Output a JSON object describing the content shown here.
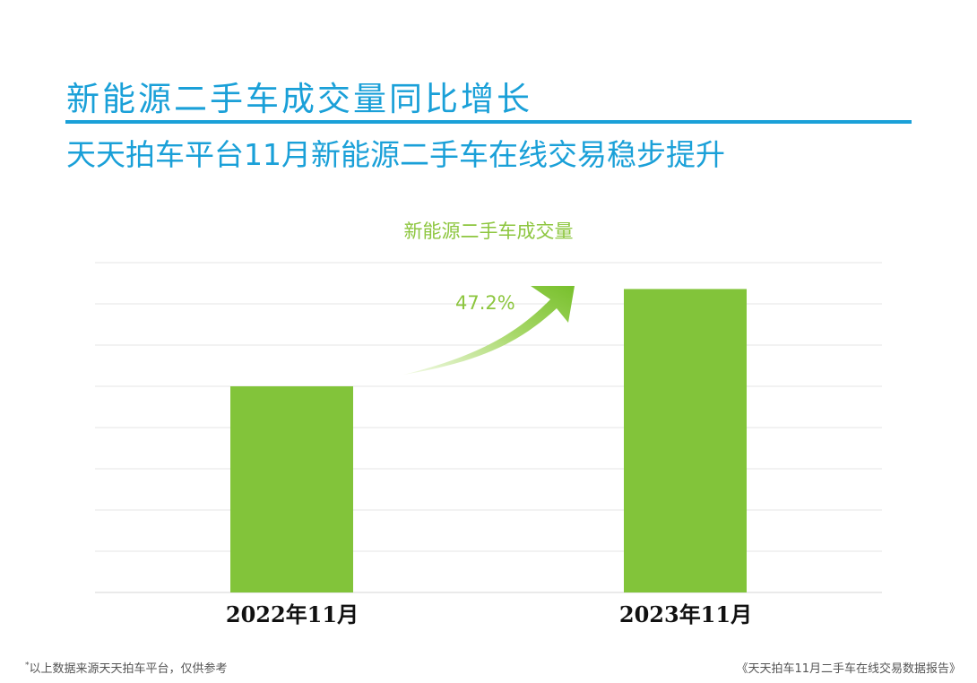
{
  "header": {
    "title": "新能源二手车成交量同比增长",
    "subtitle": "天天拍车平台11月新能源二手车在线交易稳步提升"
  },
  "chart_data": {
    "type": "bar",
    "title": "新能源二手车成交量",
    "categories": [
      "2022年11月",
      "2023年11月"
    ],
    "values": [
      100,
      147.2
    ],
    "growth_label": "47.2%",
    "bar_color": "#82c43a",
    "grid": true,
    "ylim": [
      0,
      160
    ]
  },
  "footer": {
    "footnote_mark": "*",
    "footnote": "以上数据来源天天拍车平台，仅供参考",
    "source": "《天天拍车11月二手车在线交易数据报告》"
  }
}
